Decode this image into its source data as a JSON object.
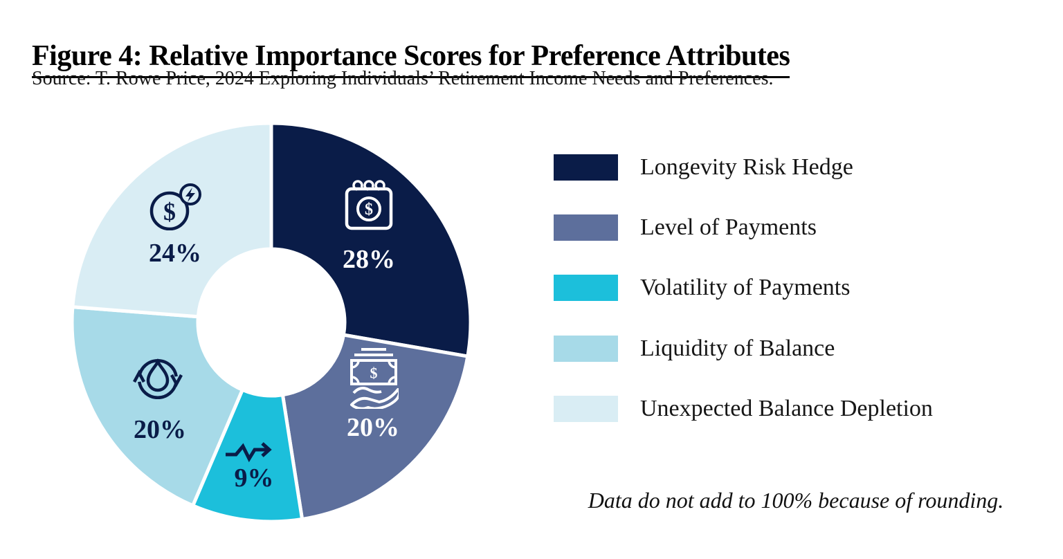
{
  "chart_data": {
    "type": "pie",
    "variant": "donut",
    "title": "Figure 4: Relative Importance Scores for Preference Attributes",
    "source": "Source: T. Rowe Price, 2024 Exploring Individuals’ Retirement Income Needs and Preferences.",
    "note": "Data do not add to 100% because of rounding.",
    "categories": [
      "Longevity Risk Hedge",
      "Level of Payments",
      "Volatility of Payments",
      "Liquidity of Balance",
      "Unexpected Balance Depletion"
    ],
    "values": [
      28,
      20,
      9,
      20,
      24
    ],
    "value_labels": [
      "28%",
      "20%",
      "9%",
      "20%",
      "24%"
    ],
    "colors": [
      "#0A1C48",
      "#5D6F9C",
      "#1CBFDB",
      "#A7DAE8",
      "#D9EDF4"
    ],
    "label_colors": [
      "#FFFFFF",
      "#FFFFFF",
      "#0A1C48",
      "#0A1C48",
      "#0A1C48"
    ],
    "icon_colors": [
      "#FFFFFF",
      "#FFFFFF",
      "#0A1C48",
      "#0A1C48",
      "#0A1C48"
    ],
    "icons": [
      "calendar-dollar",
      "cash-in-hand",
      "volatility-zigzag-arrow",
      "droplet-cycle",
      "dollar-lightning"
    ],
    "start_angle_deg": 0,
    "direction": "clockwise",
    "donut_hole_ratio": 0.37,
    "slice_gap_color": "#FFFFFF",
    "legend_position": "right",
    "grid": false
  }
}
